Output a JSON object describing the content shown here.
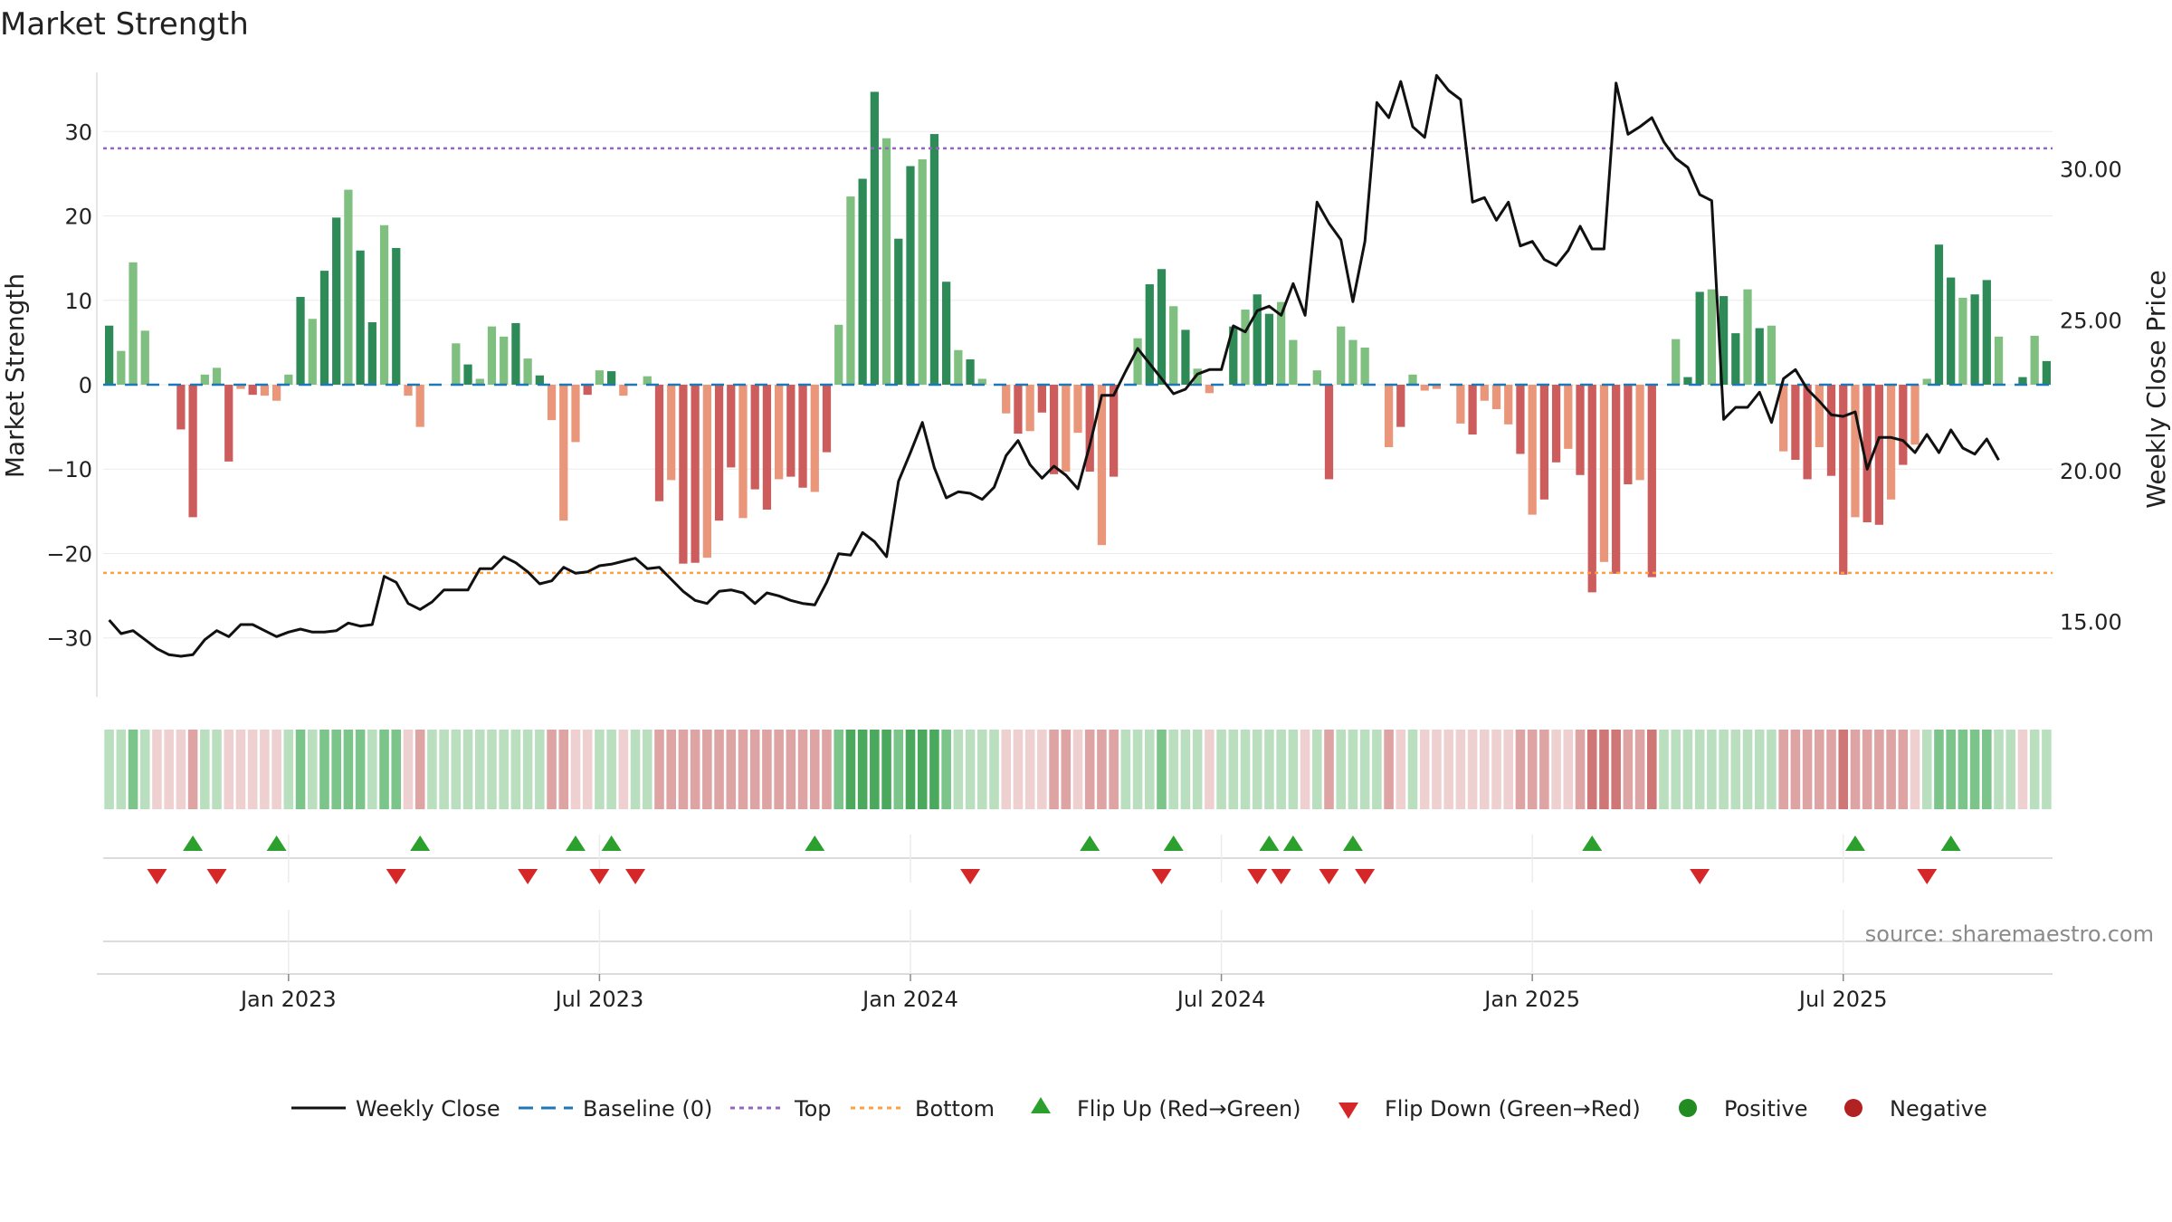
{
  "title": "Market Strength",
  "source": "source: sharemaestro.com",
  "chart_data": {
    "type": "bar",
    "title": "Market Strength",
    "ylabel_left": "Market Strength",
    "ylabel_right": "Weekly Close Price",
    "ylim_left": [
      -37,
      37
    ],
    "yticks_left": [
      30,
      20,
      10,
      0,
      -10,
      -20,
      -30
    ],
    "ytick_labels_left": [
      "30",
      "20",
      "10",
      "0",
      "−10",
      "−20",
      "−30"
    ],
    "ylim_right": [
      12.5,
      33.2
    ],
    "yticks_right": [
      30,
      25,
      20,
      15
    ],
    "ytick_labels_right": [
      "30.00",
      "25.00",
      "20.00",
      "15.00"
    ],
    "x_ticks": [
      "Jan 2023",
      "Jul 2023",
      "Jan 2024",
      "Jul 2024",
      "Jan 2025",
      "Jul 2025"
    ],
    "x_tick_weeks": [
      15,
      41,
      67,
      93,
      119,
      145
    ],
    "top_line": 28,
    "bottom_line": -22.3,
    "baseline": 0,
    "strength": [
      7,
      4,
      14.5,
      6.4,
      0,
      0,
      -5.3,
      -15.7,
      1.2,
      2,
      -9.1,
      -0.5,
      -1.2,
      -1.3,
      -1.9,
      1.2,
      10.4,
      7.8,
      13.5,
      19.8,
      23.1,
      15.9,
      7.4,
      18.9,
      16.2,
      -1.3,
      -5,
      0,
      0,
      4.9,
      2.4,
      0.7,
      6.9,
      5.7,
      7.3,
      3.1,
      1.1,
      -4.2,
      -16.1,
      -6.8,
      -1.2,
      1.7,
      1.6,
      -1.3,
      0,
      1,
      -13.8,
      -11.3,
      -21.2,
      -21.1,
      -20.5,
      -16.1,
      -9.8,
      -15.8,
      -12.4,
      -14.8,
      -11.2,
      -10.9,
      -12.2,
      -12.7,
      -8,
      7.1,
      22.3,
      24.4,
      34.7,
      29.2,
      17.3,
      25.9,
      26.7,
      29.7,
      12.2,
      4.1,
      3,
      0.7,
      0,
      -3.4,
      -5.8,
      -5.5,
      -3.3,
      -10.6,
      -10.3,
      -5.7,
      -10.3,
      -19,
      -10.9,
      0,
      5.5,
      11.9,
      13.7,
      9.3,
      6.5,
      1.9,
      -1,
      0,
      6.9,
      8.9,
      10.7,
      8.4,
      9.8,
      5.3,
      0,
      1.7,
      -11.2,
      6.9,
      5.3,
      4.4,
      0,
      -7.4,
      -5,
      1.2,
      -0.7,
      -0.5,
      0,
      -4.6,
      -5.9,
      -1.9,
      -2.9,
      -4.7,
      -8.2,
      -15.4,
      -13.6,
      -9.2,
      -7.6,
      -10.7,
      -24.6,
      -21,
      -22.4,
      -11.8,
      -11.3,
      -22.8,
      0,
      5.4,
      0.9,
      11,
      11.3,
      10.5,
      6.1,
      11.3,
      6.7,
      7,
      -7.9,
      -8.9,
      -11.2,
      -7.4,
      -10.8,
      -22.5,
      -15.7,
      -16.3,
      -16.6,
      -13.6,
      -9.5,
      -7.1,
      0.7,
      16.6,
      12.7,
      10.3,
      10.7,
      12.4,
      5.7,
      0,
      0.9,
      5.8,
      2.8
    ],
    "weekly_close": [
      15.05,
      14.6,
      14.7,
      14.4,
      14.1,
      13.9,
      13.85,
      13.9,
      14.4,
      14.7,
      14.5,
      14.9,
      14.9,
      14.7,
      14.5,
      14.65,
      14.75,
      14.65,
      14.65,
      14.7,
      14.95,
      14.85,
      14.9,
      16.5,
      16.3,
      15.6,
      15.4,
      15.65,
      16.05,
      16.05,
      16.05,
      16.75,
      16.75,
      17.15,
      16.95,
      16.65,
      16.25,
      16.35,
      16.8,
      16.6,
      16.65,
      16.85,
      16.9,
      17,
      17.1,
      16.75,
      16.8,
      16.4,
      16,
      15.7,
      15.6,
      16,
      16.05,
      15.95,
      15.6,
      15.95,
      15.85,
      15.7,
      15.6,
      15.55,
      16.3,
      17.25,
      17.2,
      17.95,
      17.65,
      17.15,
      19.65,
      20.6,
      21.6,
      20.1,
      19.1,
      19.3,
      19.25,
      19.05,
      19.45,
      20.5,
      21,
      20.2,
      19.75,
      20.15,
      19.85,
      19.4,
      20.85,
      22.5,
      22.5,
      23.3,
      24.05,
      23.55,
      23.05,
      22.55,
      22.7,
      23.2,
      23.35,
      23.35,
      24.8,
      24.6,
      25.3,
      25.45,
      25.15,
      26.2,
      25.15,
      28.9,
      28.2,
      27.65,
      25.6,
      27.6,
      32.2,
      31.7,
      32.9,
      31.4,
      31.05,
      33.1,
      32.6,
      32.3,
      28.9,
      29.05,
      28.3,
      28.9,
      27.45,
      27.6,
      27,
      26.8,
      27.3,
      28.1,
      27.35,
      27.35,
      32.85,
      31.15,
      31.4,
      31.7,
      30.9,
      30.35,
      30.05,
      29.15,
      28.95,
      21.7,
      22.1,
      22.1,
      22.6,
      21.6,
      23.05,
      23.35,
      22.7,
      22.3,
      21.85,
      21.8,
      21.95,
      20.05,
      21.1,
      21.1,
      21,
      20.6,
      21.2,
      20.6,
      21.35,
      20.75,
      20.55,
      21.05,
      20.35
    ],
    "regime_intensity": [
      1,
      1,
      2,
      1,
      -1,
      -1,
      -1,
      -2,
      1,
      1,
      -1,
      -1,
      -1,
      -1,
      -1,
      1,
      2,
      1,
      2,
      2,
      2,
      2,
      1,
      2,
      2,
      -1,
      -2,
      1,
      1,
      1,
      1,
      1,
      1,
      1,
      1,
      1,
      1,
      -2,
      -2,
      -1,
      -1,
      1,
      1,
      -1,
      1,
      1,
      -2,
      -2,
      -2,
      -2,
      -2,
      -2,
      -2,
      -2,
      -2,
      -2,
      -2,
      -2,
      -2,
      -2,
      -2,
      2,
      3,
      3,
      3,
      3,
      2,
      3,
      3,
      3,
      2,
      1,
      1,
      1,
      1,
      -1,
      -1,
      -1,
      -1,
      -2,
      -2,
      -1,
      -2,
      -2,
      -2,
      1,
      1,
      1,
      2,
      1,
      1,
      1,
      -1,
      1,
      1,
      1,
      1,
      1,
      1,
      1,
      -1,
      1,
      -2,
      1,
      1,
      1,
      1,
      -2,
      -1,
      1,
      -1,
      -1,
      -1,
      -1,
      -1,
      -1,
      -1,
      -1,
      -2,
      -2,
      -2,
      -1,
      -1,
      -2,
      -3,
      -3,
      -3,
      -2,
      -2,
      -3,
      1,
      1,
      1,
      1,
      1,
      1,
      1,
      1,
      1,
      1,
      -2,
      -2,
      -2,
      -2,
      -2,
      -3,
      -2,
      -2,
      -2,
      -2,
      -2,
      -1,
      1,
      2,
      2,
      2,
      2,
      2,
      1,
      1,
      -1,
      1,
      1
    ],
    "flip_up_weeks": [
      7,
      14,
      26,
      39,
      42,
      59,
      82,
      89,
      97,
      99,
      104,
      124,
      146,
      154
    ],
    "flip_down_weeks": [
      4,
      9,
      24,
      35,
      41,
      44,
      72,
      88,
      96,
      98,
      102,
      105,
      133,
      152
    ],
    "legend": {
      "weekly_close": "Weekly Close",
      "baseline": "Baseline (0)",
      "top": "Top",
      "bottom": "Bottom",
      "flip_up": "Flip Up (Red→Green)",
      "flip_down": "Flip Down (Green→Red)",
      "positive": "Positive",
      "negative": "Negative"
    },
    "colors": {
      "bar_pos_strong": "#2e8b57",
      "bar_pos_light": "#7fbf7f",
      "bar_neg_strong": "#cd5c5c",
      "bar_neg_light": "#e9967a",
      "close_line": "#111111",
      "baseline": "#1f77b4",
      "top": "#9467bd",
      "bottom": "#ff9f43",
      "flip_up": "#2ca02c",
      "flip_down": "#d62728",
      "positive": "#228b22",
      "negative": "#b22222"
    }
  }
}
